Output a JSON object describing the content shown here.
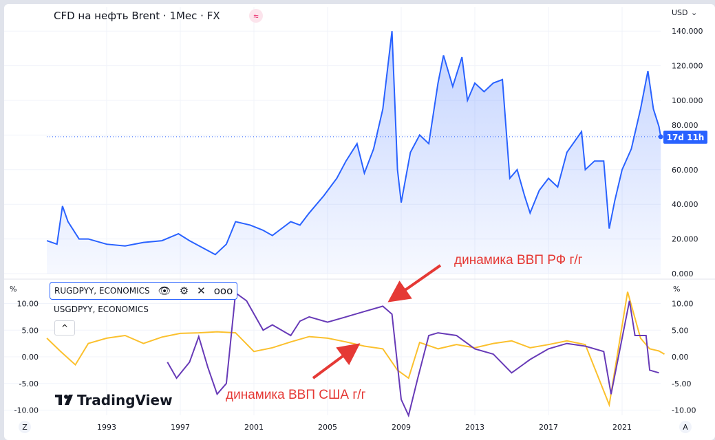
{
  "header": {
    "title": "CFD на нефть Brent · 1Мес · FX",
    "currency": "USD"
  },
  "price_label": "17d 11h",
  "logo": "TradingView",
  "buttons": {
    "left": "Z",
    "right": "A",
    "collapse": "^"
  },
  "legend": {
    "primary": "RUGDPYY, ECONOMICS",
    "secondary": "USGDPYY, ECONOMICS",
    "icons": [
      "eye-icon",
      "gear-icon",
      "close-icon",
      "more-icon"
    ]
  },
  "annotations": [
    "динамика ВВП РФ г/г",
    "динамика ВВП США г/г"
  ],
  "colors": {
    "price": "#2962ff",
    "russia": "#673ab7",
    "us": "#fbc02d",
    "annotation": "#e53935"
  },
  "chart_data": [
    {
      "type": "area",
      "title": "CFD на нефть Brent · 1Мес · FX",
      "ylabel": "USD",
      "ylim": [
        0,
        140
      ],
      "yticks": [
        "0.000",
        "20.000",
        "40.000",
        "60.000",
        "80.000",
        "100.000",
        "120.000",
        "140.000"
      ],
      "x": [
        1989.75,
        1990.3,
        1990.6,
        1990.9,
        1991.5,
        1992,
        1993,
        1994,
        1995,
        1996,
        1996.9,
        1997.5,
        1998.9,
        1999.5,
        2000,
        2000.8,
        2001.5,
        2002,
        2002.5,
        2003,
        2003.5,
        2004,
        2004.8,
        2005.5,
        2006,
        2006.6,
        2007,
        2007.5,
        2008,
        2008.5,
        2008.8,
        2009,
        2009.5,
        2010,
        2010.5,
        2011,
        2011.3,
        2011.8,
        2012.3,
        2012.6,
        2013,
        2013.5,
        2014,
        2014.5,
        2014.9,
        2015.3,
        2015.7,
        2016,
        2016.5,
        2017,
        2017.5,
        2018,
        2018.8,
        2019,
        2019.5,
        2020,
        2020.3,
        2020.6,
        2021,
        2021.5,
        2022,
        2022.4,
        2022.7,
        2023,
        2023.1
      ],
      "values": [
        19,
        17,
        39,
        30,
        20,
        20,
        17,
        16,
        18,
        19,
        23,
        19,
        11,
        17,
        30,
        28,
        25,
        22,
        26,
        30,
        28,
        35,
        45,
        55,
        65,
        75,
        58,
        72,
        95,
        140,
        60,
        41,
        70,
        80,
        75,
        110,
        126,
        108,
        125,
        100,
        110,
        105,
        110,
        112,
        55,
        60,
        45,
        35,
        48,
        55,
        50,
        70,
        82,
        60,
        65,
        65,
        26,
        42,
        60,
        72,
        95,
        117,
        95,
        85,
        79
      ]
    },
    {
      "type": "line",
      "ylabel": "%",
      "ylim": [
        -12,
        13
      ],
      "yticks": [
        "-10.00",
        "-5.00",
        "0.00",
        "5.00",
        "10.00"
      ],
      "xticks": [
        "1993",
        "1997",
        "2001",
        "2005",
        "2009",
        "2013",
        "2017",
        "2021"
      ],
      "series": [
        {
          "name": "RUGDPYY, ECONOMICS",
          "x": [
            1996.3,
            1996.8,
            1997.5,
            1998,
            1998.5,
            1999,
            1999.5,
            2000,
            2000.6,
            2001.5,
            2002,
            2003,
            2003.5,
            2004,
            2005,
            2006,
            2007,
            2008,
            2008.5,
            2009,
            2009.4,
            2009.9,
            2010.5,
            2011,
            2012,
            2013,
            2014,
            2015,
            2016,
            2017,
            2018,
            2019,
            2020,
            2020.4,
            2021.4,
            2021.7,
            2022.3,
            2022.5,
            2023
          ],
          "values": [
            -1,
            -4,
            -1,
            3.8,
            -2,
            -7,
            -5,
            12,
            10.5,
            5,
            6,
            4,
            6.7,
            7.5,
            6.5,
            7.5,
            8.5,
            9.5,
            8,
            -8,
            -11,
            -4,
            4,
            4.5,
            4,
            1.5,
            0.5,
            -3,
            -0.5,
            1.5,
            2.5,
            2,
            1,
            -7,
            10.5,
            4,
            4,
            -2.5,
            -3
          ]
        },
        {
          "name": "USGDPYY, ECONOMICS",
          "x": [
            1989.75,
            1990.5,
            1991.3,
            1992,
            1993,
            1994,
            1995,
            1996,
            1997,
            1998,
            1999,
            2000,
            2001,
            2002,
            2003,
            2004,
            2005,
            2006,
            2007,
            2008,
            2008.8,
            2009.4,
            2010,
            2011,
            2012,
            2013,
            2014,
            2015,
            2016,
            2017,
            2018,
            2019,
            2020.3,
            2021.3,
            2022,
            2022.5,
            2023,
            2023.3
          ],
          "values": [
            3.5,
            1,
            -1.5,
            2.5,
            3.5,
            4,
            2.5,
            3.7,
            4.4,
            4.5,
            4.7,
            4.5,
            1,
            1.7,
            2.8,
            3.8,
            3.5,
            2.8,
            2,
            1.5,
            -2.5,
            -4,
            2.7,
            1.5,
            2.3,
            1.7,
            2.5,
            3,
            1.7,
            2.3,
            3,
            2.3,
            -9,
            12.2,
            3.5,
            1.5,
            1.1,
            0.5
          ]
        }
      ]
    }
  ]
}
